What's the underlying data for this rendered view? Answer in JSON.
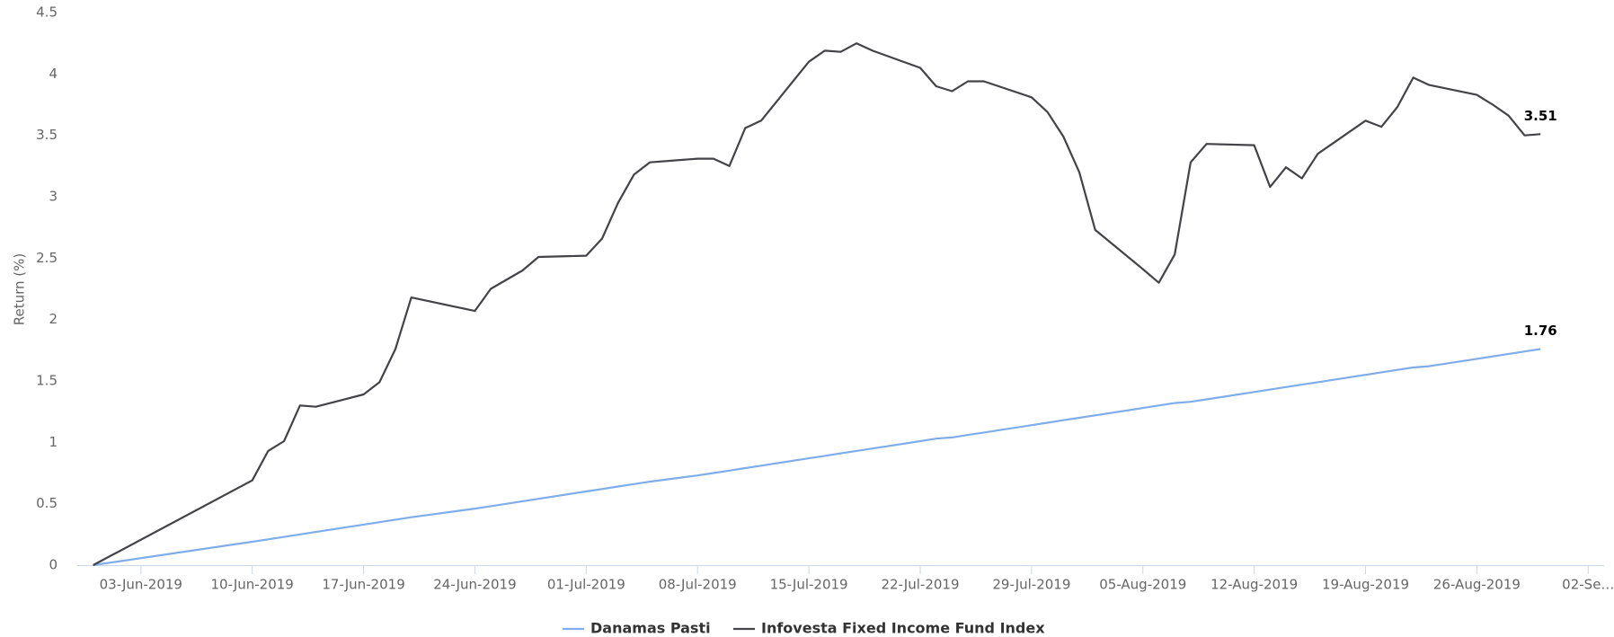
{
  "chart_data": {
    "type": "line",
    "y_label": "Return (%)",
    "x": [
      "2019-05-31",
      "2019-06-10",
      "2019-06-11",
      "2019-06-12",
      "2019-06-13",
      "2019-06-14",
      "2019-06-17",
      "2019-06-18",
      "2019-06-19",
      "2019-06-20",
      "2019-06-24",
      "2019-06-25",
      "2019-06-27",
      "2019-06-28",
      "2019-07-01",
      "2019-07-02",
      "2019-07-03",
      "2019-07-04",
      "2019-07-05",
      "2019-07-08",
      "2019-07-09",
      "2019-07-10",
      "2019-07-11",
      "2019-07-12",
      "2019-07-15",
      "2019-07-16",
      "2019-07-17",
      "2019-07-18",
      "2019-07-19",
      "2019-07-22",
      "2019-07-23",
      "2019-07-24",
      "2019-07-25",
      "2019-07-26",
      "2019-07-29",
      "2019-07-30",
      "2019-07-31",
      "2019-08-01",
      "2019-08-02",
      "2019-08-05",
      "2019-08-06",
      "2019-08-07",
      "2019-08-08",
      "2019-08-09",
      "2019-08-12",
      "2019-08-13",
      "2019-08-14",
      "2019-08-15",
      "2019-08-16",
      "2019-08-19",
      "2019-08-20",
      "2019-08-21",
      "2019-08-22",
      "2019-08-23",
      "2019-08-26",
      "2019-08-27",
      "2019-08-28",
      "2019-08-29",
      "2019-08-30"
    ],
    "series": [
      {
        "name": "Danamas Pasti",
        "color": "#7fadea",
        "values": [
          0,
          0.19,
          0.21,
          0.23,
          0.25,
          0.27,
          0.33,
          0.35,
          0.37,
          0.39,
          0.46,
          0.48,
          0.52,
          0.54,
          0.6,
          0.62,
          0.64,
          0.66,
          0.68,
          0.73,
          0.75,
          0.77,
          0.79,
          0.81,
          0.87,
          0.89,
          0.91,
          0.93,
          0.95,
          1.01,
          1.03,
          1.04,
          1.06,
          1.08,
          1.14,
          1.16,
          1.18,
          1.2,
          1.22,
          1.28,
          1.3,
          1.32,
          1.33,
          1.35,
          1.41,
          1.43,
          1.45,
          1.47,
          1.49,
          1.55,
          1.57,
          1.59,
          1.61,
          1.62,
          1.68,
          1.7,
          1.72,
          1.74,
          1.76
        ]
      },
      {
        "name": "Infovesta Fixed Income Fund Index",
        "color": "#434348",
        "values": [
          0,
          0.69,
          0.93,
          1.01,
          1.3,
          1.29,
          1.39,
          1.49,
          1.76,
          2.18,
          2.07,
          2.25,
          2.4,
          2.51,
          2.52,
          2.66,
          2.95,
          3.18,
          3.28,
          3.31,
          3.31,
          3.25,
          3.56,
          3.62,
          4.1,
          4.19,
          4.18,
          4.25,
          4.19,
          4.05,
          3.9,
          3.86,
          3.94,
          3.94,
          3.81,
          3.69,
          3.49,
          3.2,
          2.73,
          2.41,
          2.3,
          2.53,
          3.28,
          3.43,
          3.42,
          3.08,
          3.24,
          3.15,
          3.35,
          3.62,
          3.57,
          3.73,
          3.97,
          3.91,
          3.83,
          3.75,
          3.66,
          3.5,
          3.51
        ]
      }
    ],
    "xlim": [
      "2019-05-30",
      "2019-09-03"
    ],
    "xticks": [
      {
        "value": "2019-06-03",
        "label": "03-Jun-2019"
      },
      {
        "value": "2019-06-10",
        "label": "10-Jun-2019"
      },
      {
        "value": "2019-06-17",
        "label": "17-Jun-2019"
      },
      {
        "value": "2019-06-24",
        "label": "24-Jun-2019"
      },
      {
        "value": "2019-07-01",
        "label": "01-Jul-2019"
      },
      {
        "value": "2019-07-08",
        "label": "08-Jul-2019"
      },
      {
        "value": "2019-07-15",
        "label": "15-Jul-2019"
      },
      {
        "value": "2019-07-22",
        "label": "22-Jul-2019"
      },
      {
        "value": "2019-07-29",
        "label": "29-Jul-2019"
      },
      {
        "value": "2019-08-05",
        "label": "05-Aug-2019"
      },
      {
        "value": "2019-08-12",
        "label": "12-Aug-2019"
      },
      {
        "value": "2019-08-19",
        "label": "19-Aug-2019"
      },
      {
        "value": "2019-08-26",
        "label": "26-Aug-2019"
      },
      {
        "value": "2019-09-02",
        "label": "02-Se…"
      }
    ],
    "ylim": [
      0,
      4.5
    ],
    "yticks": [
      0,
      0.5,
      1,
      1.5,
      2,
      2.5,
      3,
      3.5,
      4,
      4.5
    ],
    "grid": false,
    "legend": "bottom"
  }
}
